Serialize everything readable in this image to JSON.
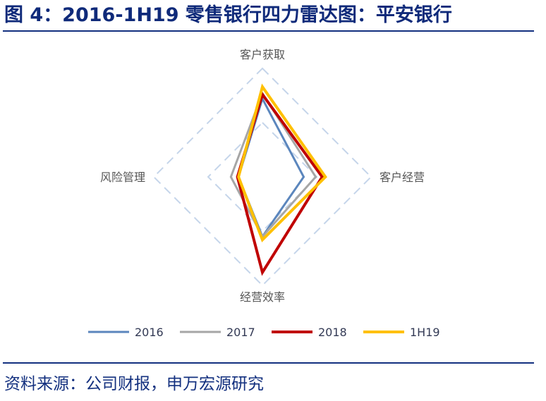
{
  "header": {
    "title": "图 4：2016-1H19 零售银行四力雷达图：平安银行"
  },
  "footer": {
    "source": "资料来源：公司财报，申万宏源研究"
  },
  "chart_data": {
    "type": "radar",
    "axes": [
      "客户获取",
      "客户经营",
      "经营效率",
      "风险管理"
    ],
    "range": [
      0,
      1
    ],
    "grid_levels": [
      0.5,
      1
    ],
    "grid_style": "dashed",
    "legend_position": "bottom",
    "series": [
      {
        "name": "2016",
        "color": "#5b86bd",
        "values": [
          0.72,
          0.38,
          0.55,
          0.22
        ]
      },
      {
        "name": "2017",
        "color": "#a6a6a6",
        "values": [
          0.77,
          0.49,
          0.55,
          0.29
        ]
      },
      {
        "name": "2018",
        "color": "#c00000",
        "values": [
          0.76,
          0.55,
          0.88,
          0.23
        ]
      },
      {
        "name": "1H19",
        "color": "#ffc000",
        "values": [
          0.83,
          0.58,
          0.58,
          0.22
        ]
      }
    ]
  }
}
